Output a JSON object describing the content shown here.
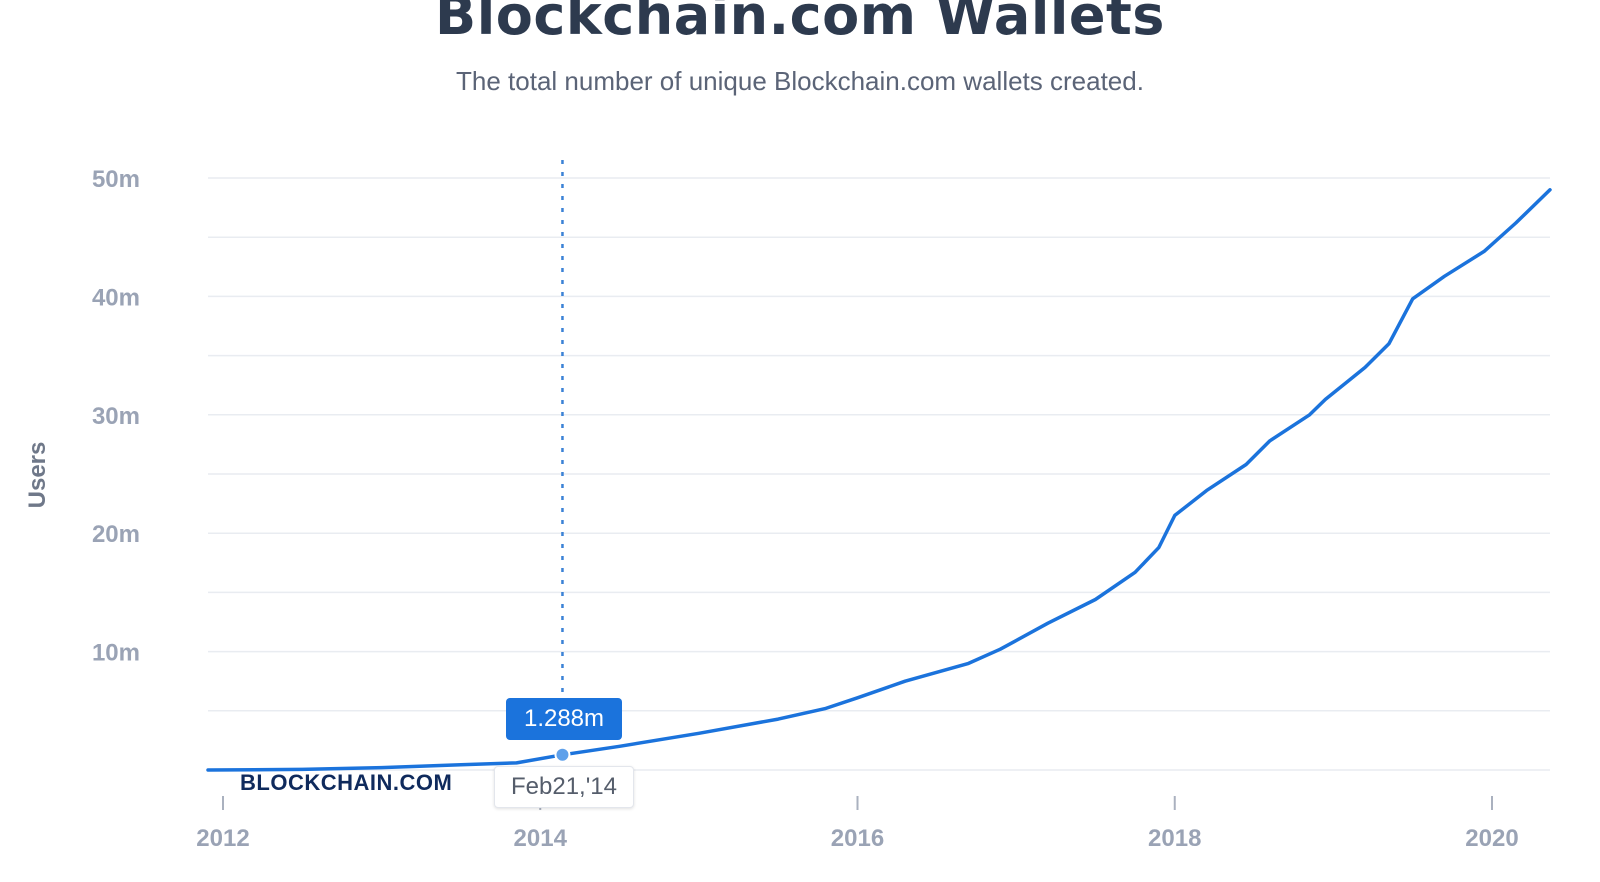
{
  "title": "Blockchain.com Wallets",
  "subtitle": "The total number of unique Blockchain.com wallets created.",
  "watermark": "BLOCKCHAIN.COM",
  "colors": {
    "line": "#1b73dc",
    "tooltip_bg": "#1b73dc",
    "crosshair": "#3b82d6"
  },
  "tooltip": {
    "value": "1.288m",
    "date": "Feb21,'14"
  },
  "chart_data": {
    "type": "line",
    "title": "Blockchain.com Wallets",
    "subtitle": "The total number of unique Blockchain.com wallets created.",
    "xlabel": "",
    "ylabel": "Users",
    "ylim": [
      0,
      50
    ],
    "y_unit": "m",
    "y_ticks": [
      10,
      20,
      30,
      40,
      50
    ],
    "y_tick_labels": [
      "10m",
      "20m",
      "30m",
      "40m",
      "50m"
    ],
    "xlim": [
      2012.0,
      2020.37
    ],
    "x_ticks": [
      2012,
      2014,
      2016,
      2018,
      2020
    ],
    "x_tick_labels": [
      "2012",
      "2014",
      "2016",
      "2018",
      "2020"
    ],
    "grid": true,
    "series": [
      {
        "values": [
          [
            2011.9,
            0.0
          ],
          [
            2012.5,
            0.05
          ],
          [
            2013.0,
            0.2
          ],
          [
            2013.5,
            0.45
          ],
          [
            2013.85,
            0.6
          ],
          [
            2014.14,
            1.288
          ],
          [
            2014.5,
            2.0
          ],
          [
            2015.0,
            3.1
          ],
          [
            2015.5,
            4.3
          ],
          [
            2015.8,
            5.2
          ],
          [
            2016.0,
            6.1
          ],
          [
            2016.3,
            7.5
          ],
          [
            2016.7,
            9.0
          ],
          [
            2016.9,
            10.2
          ],
          [
            2017.2,
            12.4
          ],
          [
            2017.5,
            14.4
          ],
          [
            2017.75,
            16.7
          ],
          [
            2017.9,
            18.8
          ],
          [
            2018.0,
            21.5
          ],
          [
            2018.2,
            23.6
          ],
          [
            2018.45,
            25.8
          ],
          [
            2018.6,
            27.8
          ],
          [
            2018.85,
            30.0
          ],
          [
            2018.95,
            31.3
          ],
          [
            2019.2,
            34.0
          ],
          [
            2019.35,
            36.0
          ],
          [
            2019.5,
            39.8
          ],
          [
            2019.7,
            41.7
          ],
          [
            2019.95,
            43.8
          ],
          [
            2020.15,
            46.2
          ],
          [
            2020.37,
            49.0
          ]
        ]
      }
    ],
    "highlight": {
      "x": 2014.14,
      "y": 1.288,
      "label": "1.288m",
      "date": "Feb21,'14"
    }
  }
}
